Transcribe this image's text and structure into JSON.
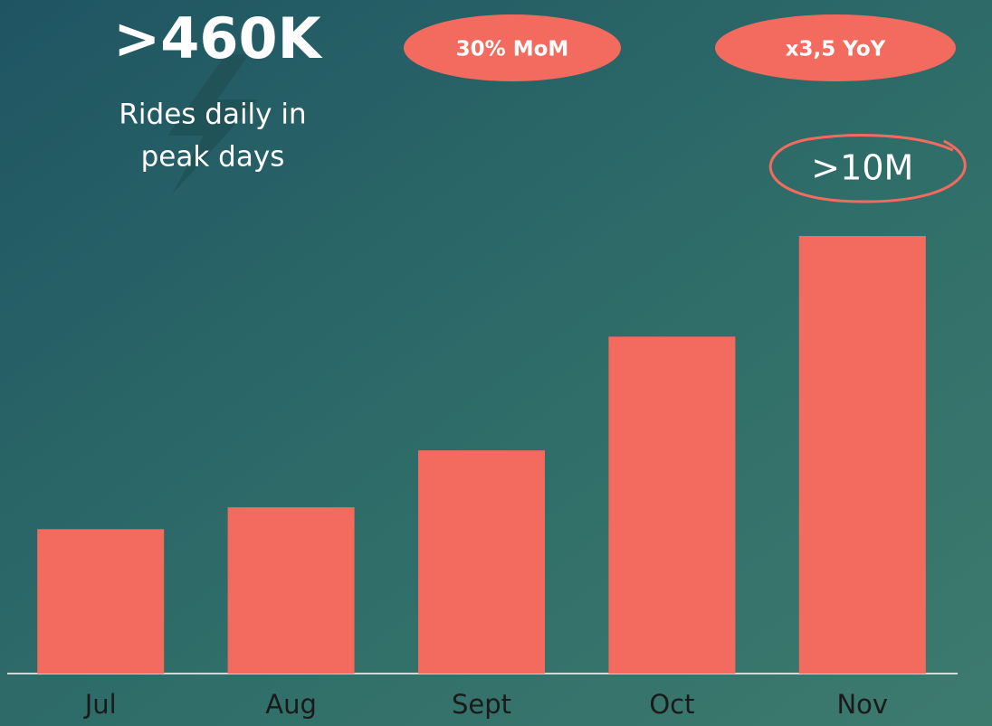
{
  "chart_data": {
    "type": "bar",
    "headline": ">460K",
    "headline_caption": [
      "Rides daily in",
      "peak days"
    ],
    "badges": [
      "30% MoM",
      "x3,5 YoY"
    ],
    "categories": [
      "Jul",
      "Aug",
      "Sept",
      "Oct",
      "Nov"
    ],
    "values": [
      3.3,
      3.8,
      5.1,
      7.7,
      10
    ],
    "value_labels": [
      null,
      null,
      null,
      null,
      ">10M"
    ],
    "color": "#f26b5e",
    "ylim": [
      0,
      10
    ],
    "grid": false
  }
}
